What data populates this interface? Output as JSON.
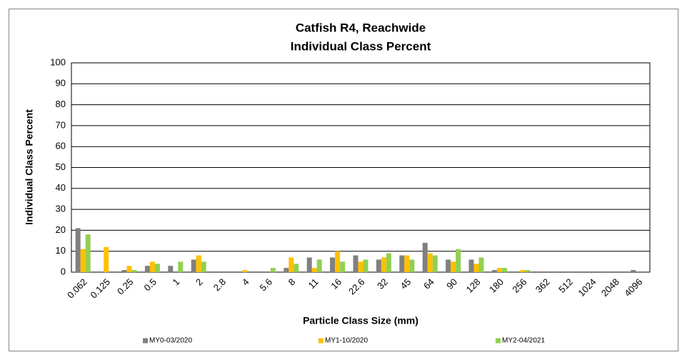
{
  "chart_data": {
    "type": "bar",
    "title": "Catfish R4, Reachwide",
    "subtitle": "Individual Class Percent",
    "x_label": "Particle Class Size (mm)",
    "y_label": "Individual Class Percent",
    "categories": [
      "0.062",
      "0.125",
      "0.25",
      "0.5",
      "1",
      "2",
      "2.8",
      "4",
      "5.6",
      "8",
      "11",
      "16",
      "22.6",
      "32",
      "45",
      "64",
      "90",
      "128",
      "180",
      "256",
      "362",
      "512",
      "1024",
      "2048",
      "4096"
    ],
    "series": [
      {
        "name": "MY0-03/2020",
        "color": "#808080",
        "values": [
          21,
          0,
          1,
          3,
          3,
          6,
          0,
          0,
          0,
          2,
          7,
          7,
          8,
          6,
          8,
          14,
          6,
          6,
          1,
          0,
          0,
          0,
          0,
          0,
          1
        ]
      },
      {
        "name": "MY1-10/2020",
        "color": "#ffc000",
        "values": [
          11,
          12,
          3,
          5,
          0,
          8,
          0,
          1,
          0,
          7,
          2,
          10,
          5,
          7,
          8,
          9,
          5,
          4,
          2,
          1,
          0,
          0,
          0,
          0,
          0
        ]
      },
      {
        "name": "MY2-04/2021",
        "color": "#92d050",
        "values": [
          18,
          0,
          1,
          4,
          5,
          5,
          0,
          0,
          2,
          4,
          6,
          5,
          6,
          9,
          6,
          8,
          11,
          7,
          2,
          1,
          0,
          0,
          0,
          0,
          0
        ]
      }
    ],
    "ylim": [
      0,
      100
    ],
    "yticks": [
      0,
      10,
      20,
      30,
      40,
      50,
      60,
      70,
      80,
      90,
      100
    ],
    "grid": true,
    "legend": "bottom"
  }
}
